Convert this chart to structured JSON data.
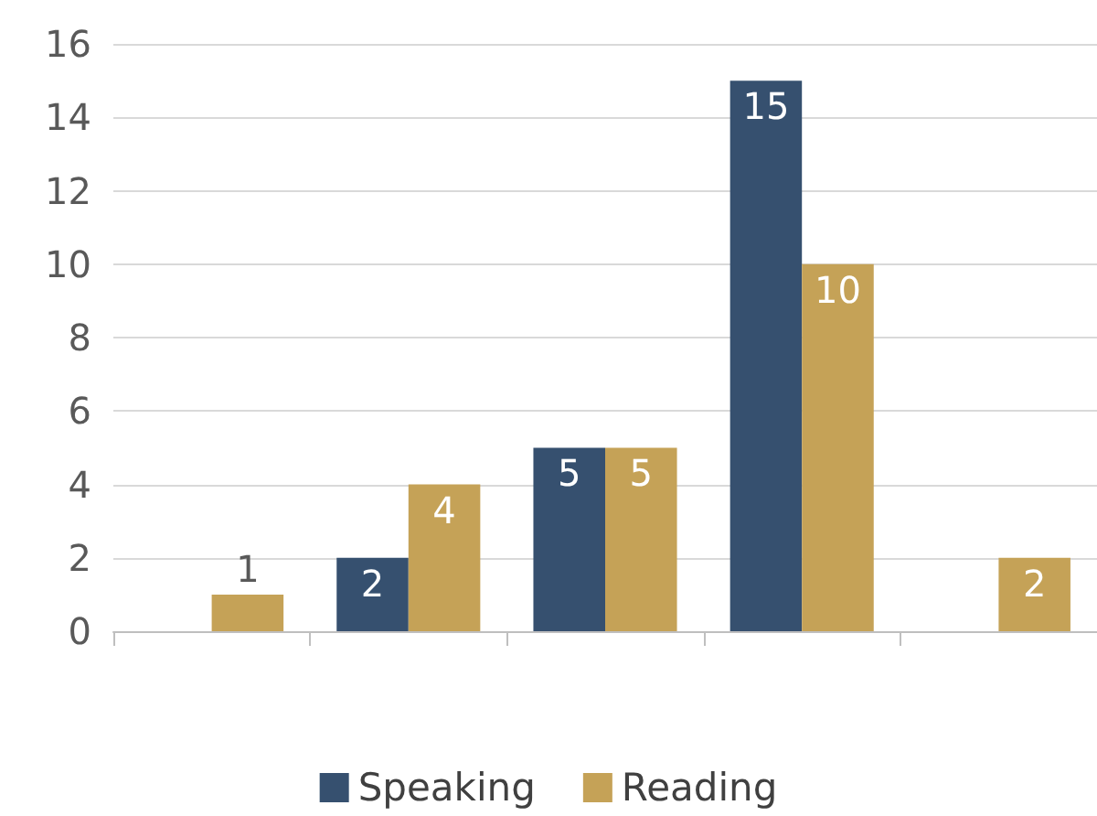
{
  "chart_data": {
    "type": "bar",
    "categories": [
      null,
      null,
      null,
      null,
      null
    ],
    "series": [
      {
        "name": "Speaking",
        "color": "#36506f",
        "values": [
          null,
          2,
          5,
          15,
          null
        ]
      },
      {
        "name": "Reading",
        "color": "#c5a257",
        "values": [
          1,
          4,
          5,
          10,
          2
        ]
      }
    ],
    "ylim": [
      0,
      16
    ],
    "yticks": [
      0,
      2,
      4,
      6,
      8,
      10,
      12,
      14,
      16
    ],
    "grid": "y",
    "legend": "bottom",
    "data_labels": true
  }
}
